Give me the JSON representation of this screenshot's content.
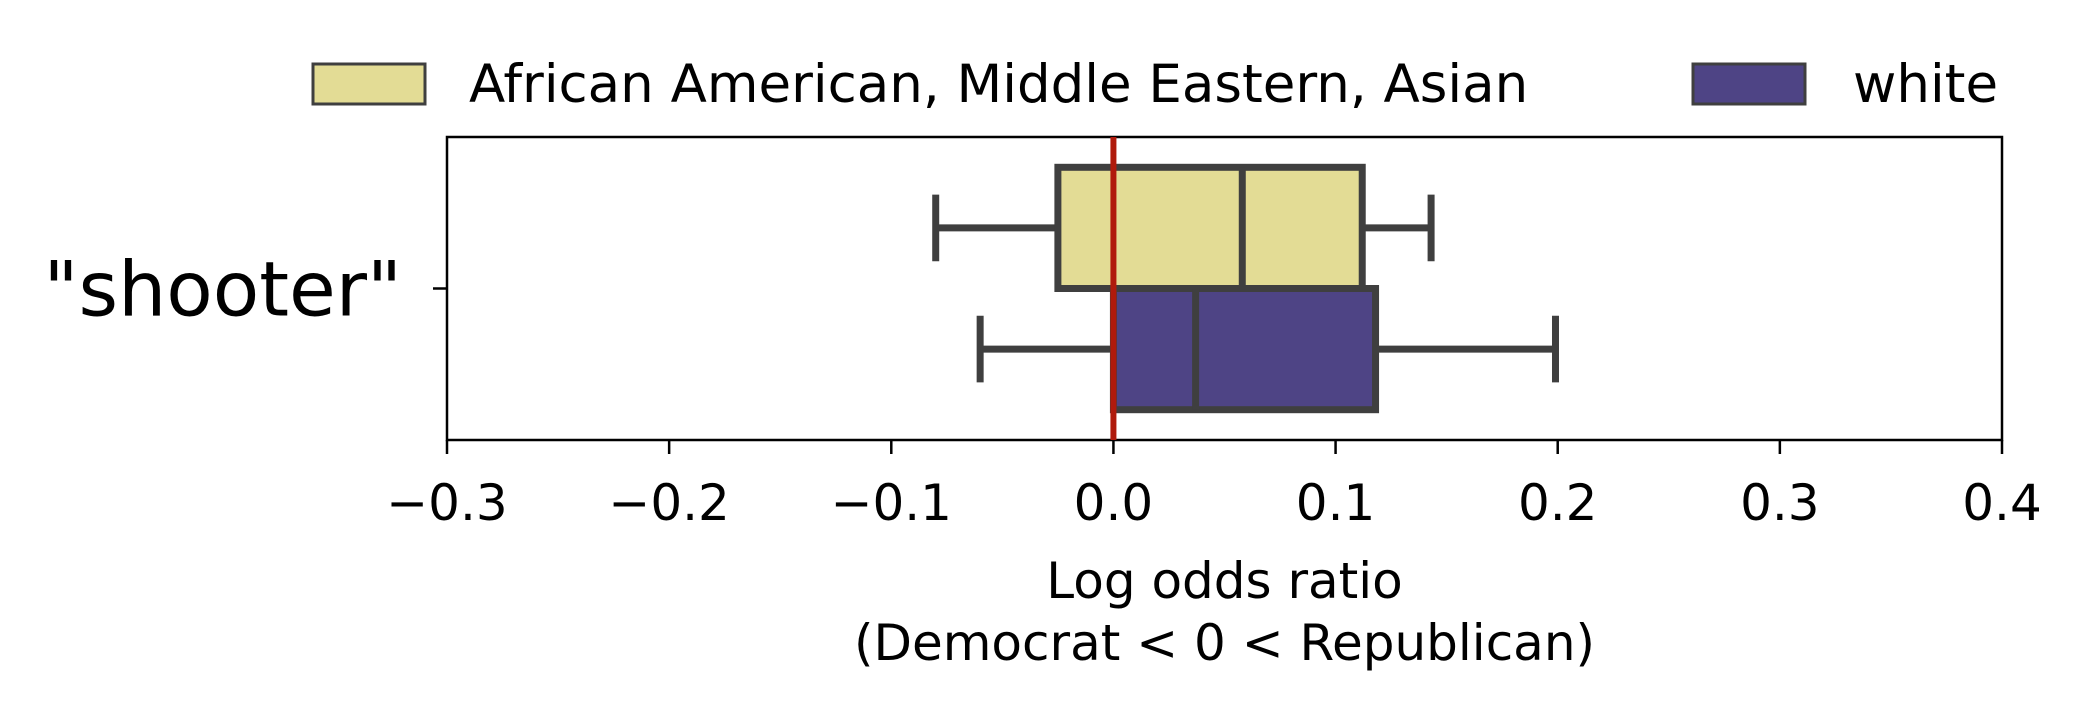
{
  "chart_data": {
    "type": "boxplot",
    "orientation": "horizontal",
    "categories": [
      "\"shooter\""
    ],
    "series": [
      {
        "name": "African American, Middle Eastern, Asian",
        "color": "#e3dc95",
        "boxes": [
          {
            "category": "\"shooter\"",
            "whislo": -0.08,
            "q1": -0.025,
            "med": 0.058,
            "q3": 0.112,
            "whishi": 0.143
          }
        ]
      },
      {
        "name": "white",
        "color": "#4e4485",
        "boxes": [
          {
            "category": "\"shooter\"",
            "whislo": -0.06,
            "q1": 0.0,
            "med": 0.037,
            "q3": 0.118,
            "whishi": 0.199
          }
        ]
      }
    ],
    "xlabel": "Log odds ratio",
    "xlabel_line2": "(Democrat < 0 < Republican)",
    "ylabel": "",
    "xlim": [
      -0.3,
      0.4
    ],
    "xticks": [
      -0.3,
      -0.2,
      -0.1,
      0.0,
      0.1,
      0.2,
      0.3,
      0.4
    ],
    "xtick_labels": [
      "−0.3",
      "−0.2",
      "−0.1",
      "0.0",
      "0.1",
      "0.2",
      "0.3",
      "0.4"
    ],
    "reference_line": {
      "x": 0.0,
      "color": "#b01a0c"
    },
    "box_edge_color": "#3f3f3f",
    "grid": false,
    "legend_position": "top"
  }
}
